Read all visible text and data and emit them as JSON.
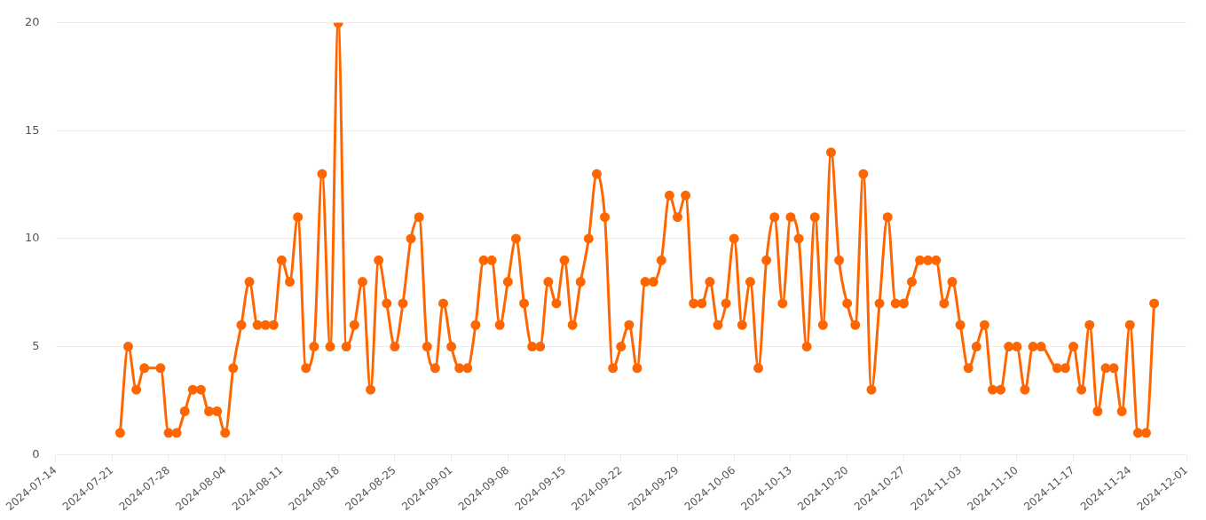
{
  "chart_data": {
    "type": "line",
    "x": [
      "2024-07-22",
      "2024-07-23",
      "2024-07-24",
      "2024-07-25",
      "2024-07-27",
      "2024-07-28",
      "2024-07-29",
      "2024-07-30",
      "2024-07-31",
      "2024-08-01",
      "2024-08-02",
      "2024-08-03",
      "2024-08-04",
      "2024-08-05",
      "2024-08-06",
      "2024-08-07",
      "2024-08-08",
      "2024-08-09",
      "2024-08-10",
      "2024-08-11",
      "2024-08-12",
      "2024-08-13",
      "2024-08-14",
      "2024-08-15",
      "2024-08-16",
      "2024-08-17",
      "2024-08-18",
      "2024-08-19",
      "2024-08-20",
      "2024-08-21",
      "2024-08-22",
      "2024-08-23",
      "2024-08-24",
      "2024-08-25",
      "2024-08-26",
      "2024-08-27",
      "2024-08-28",
      "2024-08-29",
      "2024-08-30",
      "2024-08-31",
      "2024-09-01",
      "2024-09-02",
      "2024-09-03",
      "2024-09-04",
      "2024-09-05",
      "2024-09-06",
      "2024-09-07",
      "2024-09-08",
      "2024-09-09",
      "2024-09-10",
      "2024-09-11",
      "2024-09-12",
      "2024-09-13",
      "2024-09-14",
      "2024-09-15",
      "2024-09-16",
      "2024-09-17",
      "2024-09-18",
      "2024-09-19",
      "2024-09-20",
      "2024-09-21",
      "2024-09-22",
      "2024-09-23",
      "2024-09-24",
      "2024-09-25",
      "2024-09-26",
      "2024-09-27",
      "2024-09-28",
      "2024-09-29",
      "2024-09-30",
      "2024-10-01",
      "2024-10-02",
      "2024-10-03",
      "2024-10-04",
      "2024-10-05",
      "2024-10-06",
      "2024-10-07",
      "2024-10-08",
      "2024-10-09",
      "2024-10-10",
      "2024-10-11",
      "2024-10-12",
      "2024-10-13",
      "2024-10-14",
      "2024-10-15",
      "2024-10-16",
      "2024-10-17",
      "2024-10-18",
      "2024-10-19",
      "2024-10-20",
      "2024-10-21",
      "2024-10-22",
      "2024-10-23",
      "2024-10-24",
      "2024-10-25",
      "2024-10-26",
      "2024-10-27",
      "2024-10-28",
      "2024-10-29",
      "2024-10-30",
      "2024-10-31",
      "2024-11-01",
      "2024-11-02",
      "2024-11-03",
      "2024-11-04",
      "2024-11-05",
      "2024-11-06",
      "2024-11-07",
      "2024-11-08",
      "2024-11-09",
      "2024-11-10",
      "2024-11-11",
      "2024-11-12",
      "2024-11-13",
      "2024-11-15",
      "2024-11-16",
      "2024-11-17",
      "2024-11-18",
      "2024-11-19",
      "2024-11-20",
      "2024-11-21",
      "2024-11-22",
      "2024-11-23",
      "2024-11-24",
      "2024-11-25",
      "2024-11-26",
      "2024-11-27"
    ],
    "series": [
      {
        "color": "#ff6600",
        "values": [
          1,
          5,
          3,
          4,
          4,
          1,
          1,
          2,
          3,
          3,
          2,
          2,
          1,
          4,
          6,
          8,
          6,
          6,
          6,
          9,
          8,
          11,
          4,
          5,
          13,
          5,
          20,
          5,
          6,
          8,
          3,
          9,
          7,
          5,
          7,
          10,
          11,
          5,
          4,
          7,
          5,
          4,
          4,
          6,
          9,
          9,
          6,
          8,
          10,
          7,
          5,
          5,
          8,
          7,
          9,
          6,
          8,
          10,
          13,
          11,
          4,
          5,
          6,
          4,
          8,
          8,
          9,
          12,
          11,
          12,
          7,
          7,
          8,
          6,
          7,
          10,
          6,
          8,
          4,
          9,
          11,
          7,
          11,
          10,
          5,
          11,
          6,
          14,
          9,
          7,
          6,
          13,
          3,
          7,
          11,
          7,
          7,
          8,
          9,
          9,
          9,
          7,
          8,
          6,
          4,
          5,
          6,
          3,
          3,
          5,
          5,
          3,
          5,
          5,
          4,
          4,
          5,
          3,
          6,
          2,
          4,
          4,
          2,
          6,
          1,
          1,
          7
        ]
      }
    ],
    "xlim": [
      "2024-07-14",
      "2024-12-01"
    ],
    "xticks": [
      "2024-07-14",
      "2024-07-21",
      "2024-07-28",
      "2024-08-04",
      "2024-08-11",
      "2024-08-18",
      "2024-08-25",
      "2024-09-01",
      "2024-09-08",
      "2024-09-15",
      "2024-09-22",
      "2024-09-29",
      "2024-10-06",
      "2024-10-13",
      "2024-10-20",
      "2024-10-27",
      "2024-11-03",
      "2024-11-10",
      "2024-11-17",
      "2024-11-24",
      "2024-12-01"
    ],
    "ylim": [
      0,
      20
    ],
    "yticks": [
      0,
      5,
      10,
      15,
      20
    ],
    "grid": "y",
    "legend": false,
    "marker": "circle",
    "line_style": "solid"
  }
}
